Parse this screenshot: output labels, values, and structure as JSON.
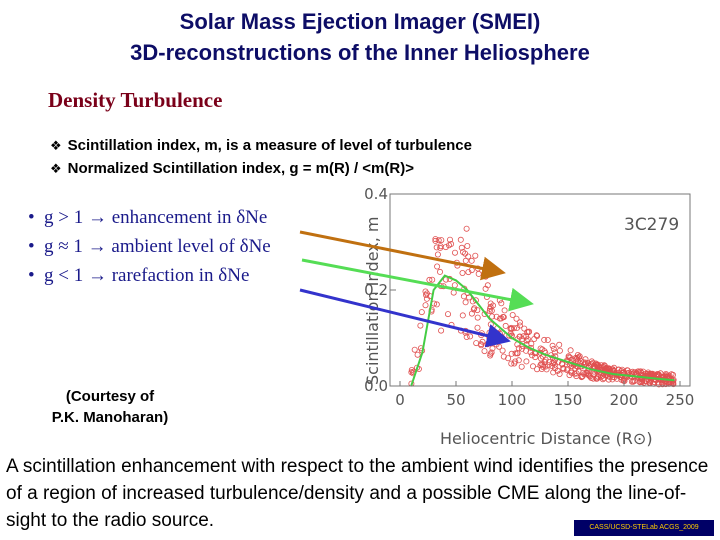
{
  "header": {
    "title_line1": "Solar Mass Ejection Imager (SMEI)",
    "title_line2": "3D-reconstructions of the Inner Heliosphere"
  },
  "section": {
    "heading": "Density Turbulence",
    "checks": [
      "Scintillation index, m, is a measure of level of turbulence",
      "Normalized Scintillation index, g = m(R) / <m(R)>"
    ],
    "g_bullets": [
      "g > 1 → enhancement in δNe",
      "g ≈ 1 → ambient level of δNe",
      "g < 1 → rarefaction in δNe"
    ]
  },
  "courtesy": {
    "line1": "(Courtesy of",
    "line2": "P.K. Manoharan)"
  },
  "caption": "A scintillation enhancement with respect to the ambient wind identifies the presence of a region of increased turbulence/density and a possible CME along the line-of-sight to the radio source.",
  "footer_badge": "CASS/UCSD-STELab ACGS_2009",
  "colors": {
    "title": "#0d0d66",
    "heading": "#7a0019",
    "bullets": "#1a1a8a",
    "points": "#e05050",
    "fit_line": "#44cc44",
    "arrow_orange": "#c07010",
    "arrow_green": "#55dd55",
    "arrow_blue": "#3333cc"
  },
  "chart_data": {
    "type": "scatter",
    "source_label": "3C279",
    "xlabel": "Heliocentric Distance (R⊙)",
    "ylabel": "Scintillation Index, m",
    "xlim": [
      0,
      250
    ],
    "ylim": [
      0.0,
      0.4
    ],
    "x_ticks": [
      "0",
      "50",
      "100",
      "150",
      "200",
      "250"
    ],
    "y_ticks": [
      "0.0",
      "0.2",
      "0.4"
    ],
    "fit_curve": {
      "x": [
        10,
        20,
        30,
        40,
        50,
        60,
        70,
        80,
        90,
        100,
        115,
        130,
        150,
        170,
        190,
        210,
        230,
        245
      ],
      "y": [
        0.0,
        0.07,
        0.2,
        0.23,
        0.22,
        0.2,
        0.17,
        0.14,
        0.12,
        0.1,
        0.08,
        0.065,
        0.05,
        0.035,
        0.025,
        0.02,
        0.015,
        0.012
      ]
    },
    "envelope": {
      "x_min": 10,
      "x_peak": 35,
      "y_peak": 0.24
    }
  }
}
